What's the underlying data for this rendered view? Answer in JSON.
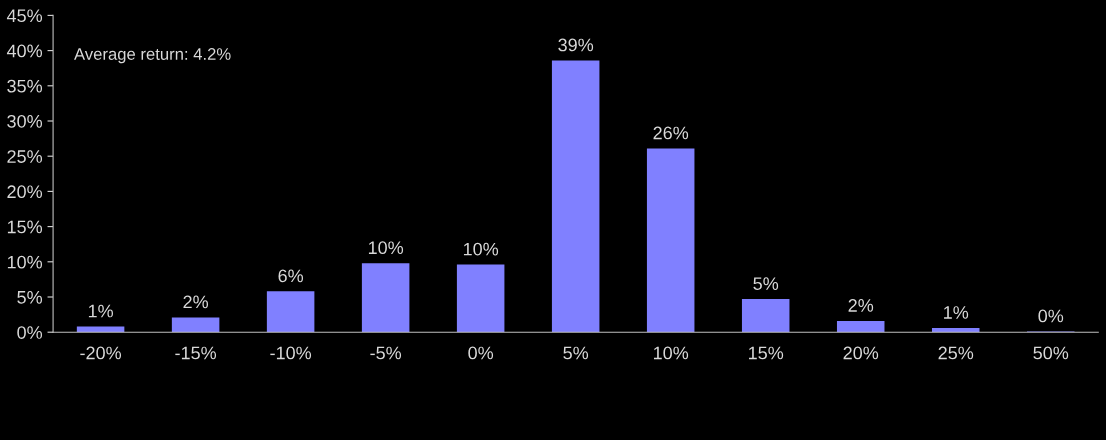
{
  "chart_data": {
    "type": "bar",
    "categories": [
      "-20%",
      "-15%",
      "-10%",
      "-5%",
      "0%",
      "5%",
      "10%",
      "15%",
      "20%",
      "25%",
      "50%"
    ],
    "values": [
      0.8,
      2.1,
      5.8,
      9.8,
      9.6,
      38.6,
      26.1,
      4.7,
      1.6,
      0.6,
      0.1
    ],
    "value_labels": [
      "1%",
      "2%",
      "6%",
      "10%",
      "10%",
      "39%",
      "26%",
      "5%",
      "2%",
      "1%",
      "0%"
    ],
    "color": "#8080ff",
    "ylim": [
      0,
      45
    ],
    "yticks": [
      {
        "value": 0,
        "label": "0%"
      },
      {
        "value": 5,
        "label": "5%"
      },
      {
        "value": 10,
        "label": "10%"
      },
      {
        "value": 15,
        "label": "15%"
      },
      {
        "value": 20,
        "label": "20%"
      },
      {
        "value": 25,
        "label": "25%"
      },
      {
        "value": 30,
        "label": "30%"
      },
      {
        "value": 35,
        "label": "35%"
      },
      {
        "value": 40,
        "label": "40%"
      },
      {
        "value": 45,
        "label": "45%"
      }
    ],
    "annotations": [
      "Average return: 4.2%"
    ],
    "grid": false,
    "legend": false
  }
}
